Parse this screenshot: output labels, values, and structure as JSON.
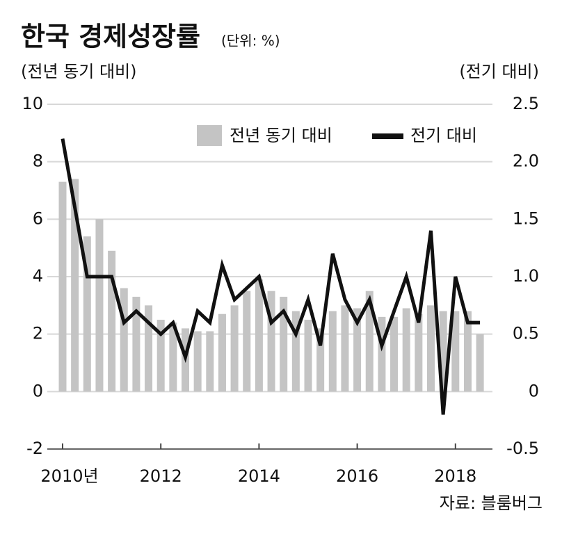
{
  "chart_data": {
    "type": "bar",
    "title": "한국 경제성장률",
    "subtitle": "(단위: %)",
    "y_label": "(전년 동기 대비)",
    "y2_label": "(전기 대비)",
    "source": "자료: 블룸버그",
    "categories": [
      "2010년",
      null,
      null,
      null,
      null,
      null,
      null,
      null,
      "2012",
      null,
      null,
      null,
      null,
      null,
      null,
      null,
      "2014",
      null,
      null,
      null,
      null,
      null,
      null,
      null,
      "2016",
      null,
      null,
      null,
      null,
      null,
      null,
      null,
      "2018",
      null,
      null
    ],
    "series": [
      {
        "name": "전년 동기 대비",
        "type": "bar",
        "color": "#c4c4c4",
        "values": [
          7.3,
          7.4,
          5.4,
          6.0,
          4.9,
          3.6,
          3.3,
          3.0,
          2.5,
          2.4,
          2.2,
          2.1,
          2.1,
          2.7,
          3.0,
          3.5,
          3.9,
          3.5,
          3.3,
          2.8,
          2.5,
          2.2,
          2.8,
          3.0,
          2.9,
          3.5,
          2.6,
          2.6,
          2.9,
          2.7,
          3.0,
          2.8,
          2.8,
          2.8,
          2.0
        ]
      },
      {
        "name": "전기 대비",
        "type": "line",
        "axis": "y2",
        "color": "#111111",
        "values": [
          2.2,
          1.6,
          1.0,
          1.0,
          1.0,
          0.6,
          0.7,
          0.6,
          0.5,
          0.6,
          0.3,
          0.7,
          0.6,
          1.1,
          0.8,
          0.9,
          1.0,
          0.6,
          0.7,
          0.5,
          0.8,
          0.4,
          1.2,
          0.8,
          0.6,
          0.8,
          0.4,
          0.7,
          1.0,
          0.6,
          1.4,
          -0.2,
          1.0,
          0.6,
          0.6
        ]
      }
    ],
    "ylim": [
      -2,
      10
    ],
    "yticks": [
      -2,
      0,
      2,
      4,
      6,
      8,
      10
    ],
    "y2lim": [
      -0.5,
      2.5
    ],
    "y2ticks": [
      -0.5,
      0,
      0.5,
      {
        "value": 1,
        "label": "1.0"
      },
      1.5,
      {
        "value": 2,
        "label": "2.0"
      },
      2.5
    ],
    "grid": true,
    "legend": "top-right"
  }
}
